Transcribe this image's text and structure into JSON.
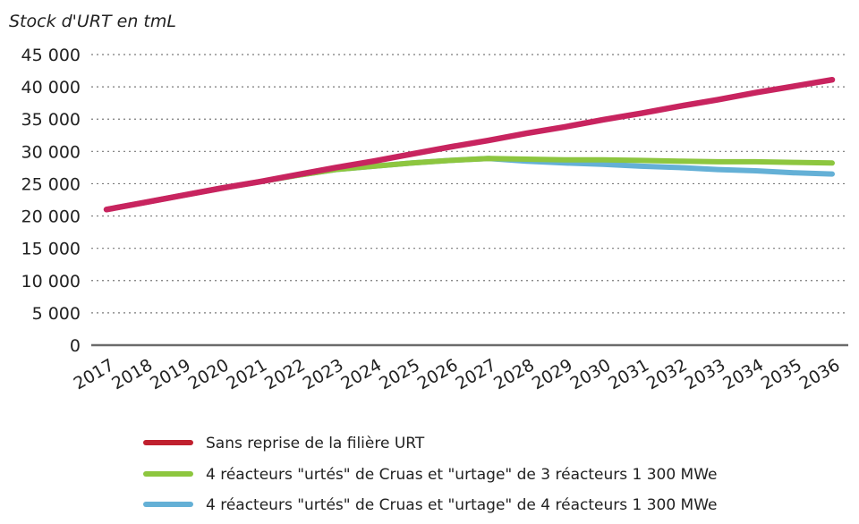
{
  "chart_data": {
    "type": "line",
    "title": "",
    "ylabel": "Stock d'URT en tmL",
    "xlabel": "",
    "ylim": [
      0,
      45000
    ],
    "yticks": [
      0,
      5000,
      10000,
      15000,
      20000,
      25000,
      30000,
      35000,
      40000,
      45000
    ],
    "ytick_labels": [
      "0",
      "5 000",
      "10 000",
      "15 000",
      "20 000",
      "25 000",
      "30 000",
      "35 000",
      "40 000",
      "45 000"
    ],
    "categories": [
      "2017",
      "2018",
      "2019",
      "2020",
      "2021",
      "2022",
      "2023",
      "2024",
      "2025",
      "2026",
      "2027",
      "2028",
      "2029",
      "2030",
      "2031",
      "2032",
      "2033",
      "2034",
      "2035",
      "2036"
    ],
    "grid": "horizontal-dotted",
    "legend_position": "bottom",
    "series": [
      {
        "name": "Sans reprise de la filière URT",
        "color": "#c8245f",
        "legend_color": "#c0202e",
        "values": [
          21000,
          22100,
          23200,
          24300,
          25300,
          26400,
          27500,
          28500,
          29600,
          30700,
          31700,
          32800,
          33800,
          34900,
          35900,
          37000,
          38000,
          39100,
          40100,
          41100
        ]
      },
      {
        "name": "4 réacteurs \"urtés\" de Cruas et \"urtage\" de 3 réacteurs 1 300 MWe",
        "color": "#8dc63f",
        "legend_color": "#8dc63f",
        "values": [
          21000,
          22100,
          23200,
          24300,
          25300,
          26300,
          27200,
          27700,
          28200,
          28600,
          28900,
          28800,
          28700,
          28700,
          28600,
          28500,
          28400,
          28400,
          28300,
          28200
        ]
      },
      {
        "name": "4 réacteurs \"urtés\" de Cruas et \"urtage\" de 4 réacteurs 1 300 MWe",
        "color": "#64b0d6",
        "legend_color": "#64b0d6",
        "values": [
          21000,
          22100,
          23200,
          24300,
          25300,
          26300,
          27200,
          27700,
          28200,
          28600,
          28900,
          28500,
          28200,
          28000,
          27700,
          27500,
          27200,
          27000,
          26700,
          26500
        ]
      }
    ]
  }
}
